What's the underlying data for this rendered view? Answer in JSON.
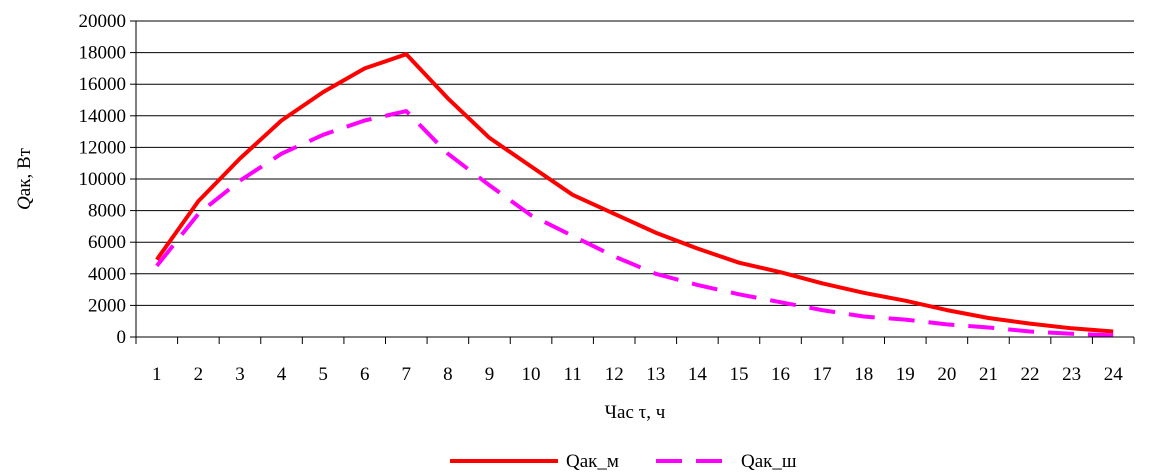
{
  "chart_data": {
    "type": "line",
    "x": [
      1,
      2,
      3,
      4,
      5,
      6,
      7,
      8,
      9,
      10,
      11,
      12,
      13,
      14,
      15,
      16,
      17,
      18,
      19,
      20,
      21,
      22,
      23,
      24
    ],
    "series": [
      {
        "name": "Qак_м",
        "color": "#ff0000",
        "style": "solid",
        "values": [
          4900,
          8600,
          11300,
          13700,
          15500,
          17000,
          17900,
          15100,
          12600,
          10800,
          9000,
          7800,
          6600,
          5600,
          4700,
          4100,
          3400,
          2800,
          2300,
          1700,
          1200,
          850,
          550,
          350
        ]
      },
      {
        "name": "Qак_ш",
        "color": "#ff00ff",
        "style": "dashed",
        "values": [
          4500,
          7800,
          9900,
          11600,
          12800,
          13700,
          14300,
          11600,
          9600,
          7700,
          6400,
          5100,
          4000,
          3300,
          2700,
          2200,
          1700,
          1300,
          1100,
          800,
          600,
          350,
          200,
          100
        ]
      }
    ],
    "xlabel": "Час τ, ч",
    "ylabel": {
      "italic": "Q",
      "rest": "ак, Вт"
    },
    "ylim": [
      0,
      20000
    ],
    "yticks": [
      0,
      2000,
      4000,
      6000,
      8000,
      10000,
      12000,
      14000,
      16000,
      18000,
      20000
    ],
    "grid": "horizontal",
    "legend_position": "bottom"
  }
}
